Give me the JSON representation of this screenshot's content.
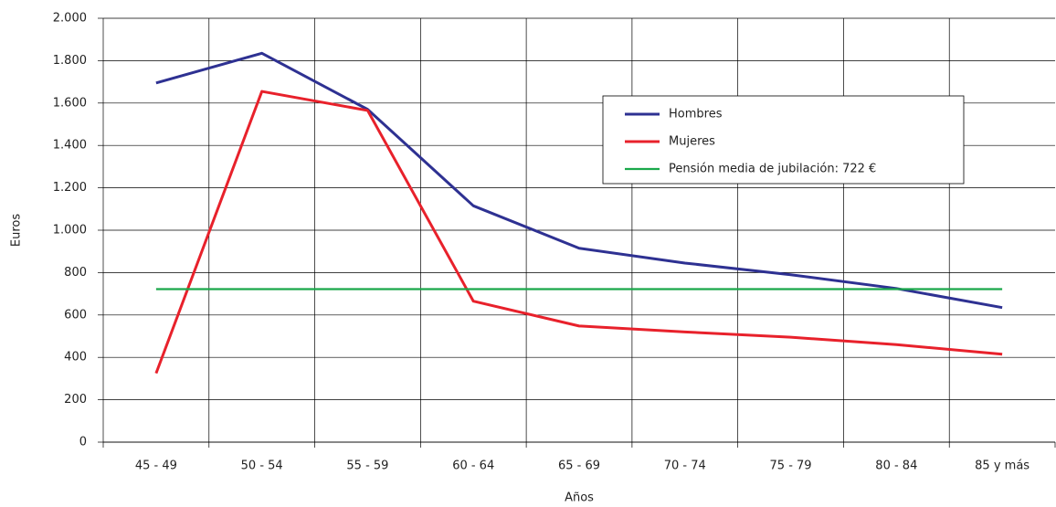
{
  "chart_data": {
    "type": "line",
    "categories": [
      "45 - 49",
      "50 - 54",
      "55 - 59",
      "60 - 64",
      "65 - 69",
      "70 - 74",
      "75 - 79",
      "80 - 84",
      "85  y más"
    ],
    "series": [
      {
        "name": "Hombres",
        "color": "#2e3192",
        "values": [
          1695,
          1835,
          1570,
          1115,
          915,
          845,
          790,
          725,
          635
        ]
      },
      {
        "name": "Mujeres",
        "color": "#e8212b",
        "values": [
          325,
          1655,
          1565,
          665,
          548,
          520,
          495,
          460,
          415
        ]
      },
      {
        "name": "Pensión media de jubilación: 722 €",
        "color": "#1aa84a",
        "values": [
          722,
          722,
          722,
          722,
          722,
          722,
          722,
          722,
          722
        ]
      }
    ],
    "xlabel": "Años",
    "ylabel": "Euros",
    "ylim": [
      0,
      2000
    ],
    "yticks": [
      0,
      200,
      400,
      600,
      800,
      {
        "value": 1000,
        "label": "1.000"
      },
      {
        "value": 1200,
        "label": "1.200"
      },
      {
        "value": 1400,
        "label": "1.400"
      },
      {
        "value": 1600,
        "label": "1.600"
      },
      {
        "value": 1800,
        "label": "1.800"
      },
      {
        "value": 2000,
        "label": "2.000"
      }
    ],
    "grid": true,
    "legend": "upper right"
  }
}
